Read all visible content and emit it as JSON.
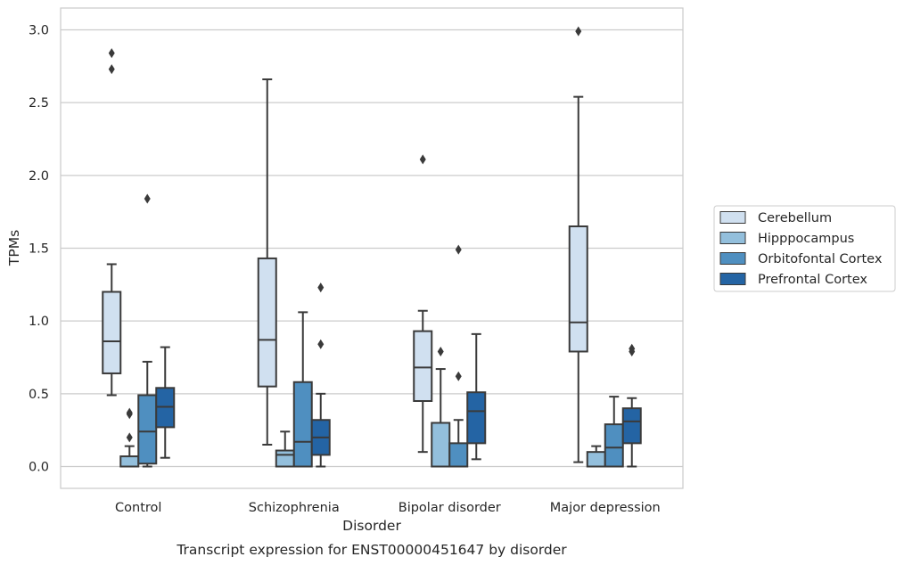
{
  "chart_data": {
    "type": "box",
    "title": "",
    "caption": "Transcript expression for ENST00000451647 by disorder",
    "xlabel": "Disorder",
    "ylabel": "TPMs",
    "ylim": [
      -0.15,
      3.15
    ],
    "yticks": [
      "0.0",
      "0.5",
      "1.0",
      "1.5",
      "2.0",
      "2.5",
      "3.0"
    ],
    "ytick_values": [
      0,
      0.5,
      1.0,
      1.5,
      2.0,
      2.5,
      3.0
    ],
    "grid": true,
    "categories": [
      "Control",
      "Schizophrenia",
      "Bipolar disorder",
      "Major depression"
    ],
    "legend_position": "right",
    "series": [
      {
        "name": "Cerebellum",
        "color": "#d0e0f0",
        "boxes": [
          {
            "whislo": 0.49,
            "q1": 0.64,
            "med": 0.86,
            "q3": 1.2,
            "whishi": 1.39,
            "fliers": [
              2.73,
              2.84
            ]
          },
          {
            "whislo": 0.15,
            "q1": 0.55,
            "med": 0.87,
            "q3": 1.43,
            "whishi": 2.66,
            "fliers": []
          },
          {
            "whislo": 0.1,
            "q1": 0.45,
            "med": 0.68,
            "q3": 0.93,
            "whishi": 1.07,
            "fliers": [
              2.11
            ]
          },
          {
            "whislo": 0.03,
            "q1": 0.79,
            "med": 0.99,
            "q3": 1.65,
            "whishi": 2.54,
            "fliers": [
              2.99
            ]
          }
        ]
      },
      {
        "name": "Hipppocampus",
        "color": "#93bfdc",
        "boxes": [
          {
            "whislo": 0.0,
            "q1": 0.0,
            "med": 0.0,
            "q3": 0.07,
            "whishi": 0.14,
            "fliers": [
              0.2,
              0.36,
              0.37
            ]
          },
          {
            "whislo": 0.0,
            "q1": 0.0,
            "med": 0.08,
            "q3": 0.11,
            "whishi": 0.24,
            "fliers": []
          },
          {
            "whislo": 0.0,
            "q1": 0.0,
            "med": 0.0,
            "q3": 0.3,
            "whishi": 0.67,
            "fliers": [
              0.79
            ]
          },
          {
            "whislo": 0.0,
            "q1": 0.0,
            "med": 0.0,
            "q3": 0.1,
            "whishi": 0.14,
            "fliers": []
          }
        ]
      },
      {
        "name": "Orbitofontal Cortex",
        "color": "#4f8fc0",
        "boxes": [
          {
            "whislo": 0.0,
            "q1": 0.02,
            "med": 0.24,
            "q3": 0.49,
            "whishi": 0.72,
            "fliers": [
              1.84
            ]
          },
          {
            "whislo": 0.0,
            "q1": 0.0,
            "med": 0.17,
            "q3": 0.58,
            "whishi": 1.06,
            "fliers": []
          },
          {
            "whislo": 0.0,
            "q1": 0.0,
            "med": 0.0,
            "q3": 0.16,
            "whishi": 0.32,
            "fliers": [
              0.62,
              1.49
            ]
          },
          {
            "whislo": 0.0,
            "q1": 0.0,
            "med": 0.13,
            "q3": 0.29,
            "whishi": 0.48,
            "fliers": []
          }
        ]
      },
      {
        "name": "Prefrontal Cortex",
        "color": "#2464a4",
        "boxes": [
          {
            "whislo": 0.06,
            "q1": 0.27,
            "med": 0.41,
            "q3": 0.54,
            "whishi": 0.82,
            "fliers": []
          },
          {
            "whislo": 0.0,
            "q1": 0.08,
            "med": 0.2,
            "q3": 0.32,
            "whishi": 0.5,
            "fliers": [
              0.84,
              1.23
            ]
          },
          {
            "whislo": 0.05,
            "q1": 0.16,
            "med": 0.38,
            "q3": 0.51,
            "whishi": 0.91,
            "fliers": []
          },
          {
            "whislo": 0.0,
            "q1": 0.16,
            "med": 0.31,
            "q3": 0.4,
            "whishi": 0.47,
            "fliers": [
              0.79,
              0.81
            ]
          }
        ]
      }
    ]
  }
}
